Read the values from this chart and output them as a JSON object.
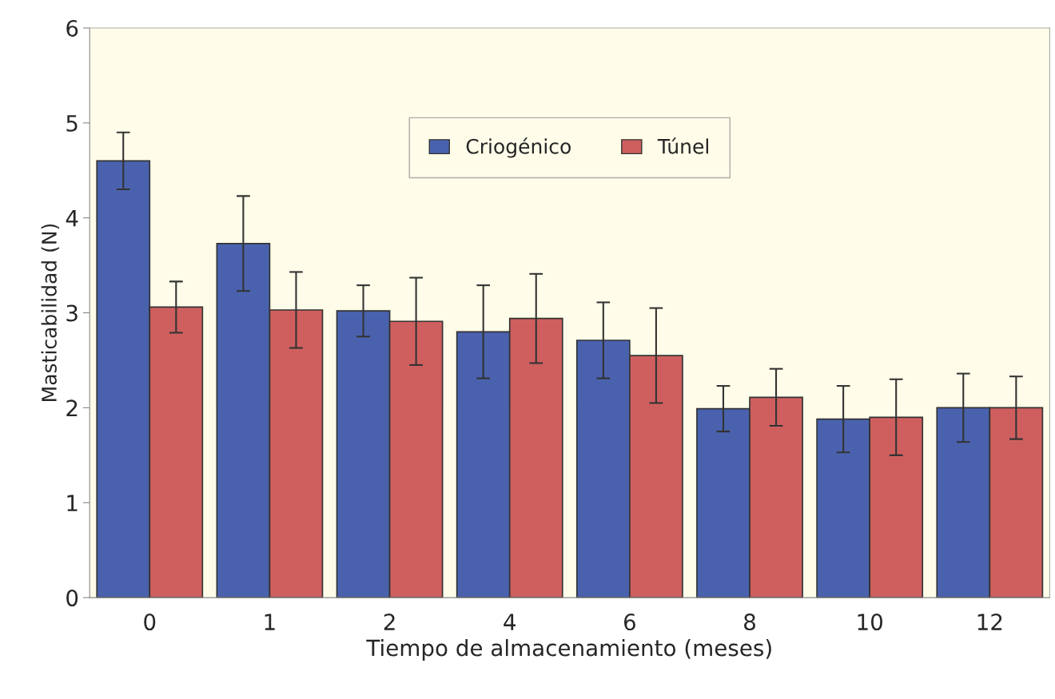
{
  "chart_data": {
    "type": "bar",
    "xlabel": "Tiempo de almacenamiento (meses)",
    "ylabel": "Masticabilidad (N)",
    "categories": [
      "0",
      "1",
      "2",
      "4",
      "6",
      "8",
      "10",
      "12"
    ],
    "series": [
      {
        "name": "Criogénico",
        "color": "#4a62ae",
        "values": [
          4.6,
          3.73,
          3.02,
          2.8,
          2.71,
          1.99,
          1.88,
          2.0
        ],
        "errors": [
          0.3,
          0.5,
          0.27,
          0.49,
          0.4,
          0.24,
          0.35,
          0.36
        ]
      },
      {
        "name": "Túnel",
        "color": "#cf5f5f",
        "values": [
          3.06,
          3.03,
          2.91,
          2.94,
          2.55,
          2.11,
          1.9,
          2.0
        ],
        "errors": [
          0.27,
          0.4,
          0.46,
          0.47,
          0.5,
          0.3,
          0.4,
          0.33
        ]
      }
    ],
    "ylim": [
      0,
      6
    ],
    "yticks": [
      0,
      1,
      2,
      3,
      4,
      5,
      6
    ],
    "grid": false,
    "legend": "top"
  }
}
